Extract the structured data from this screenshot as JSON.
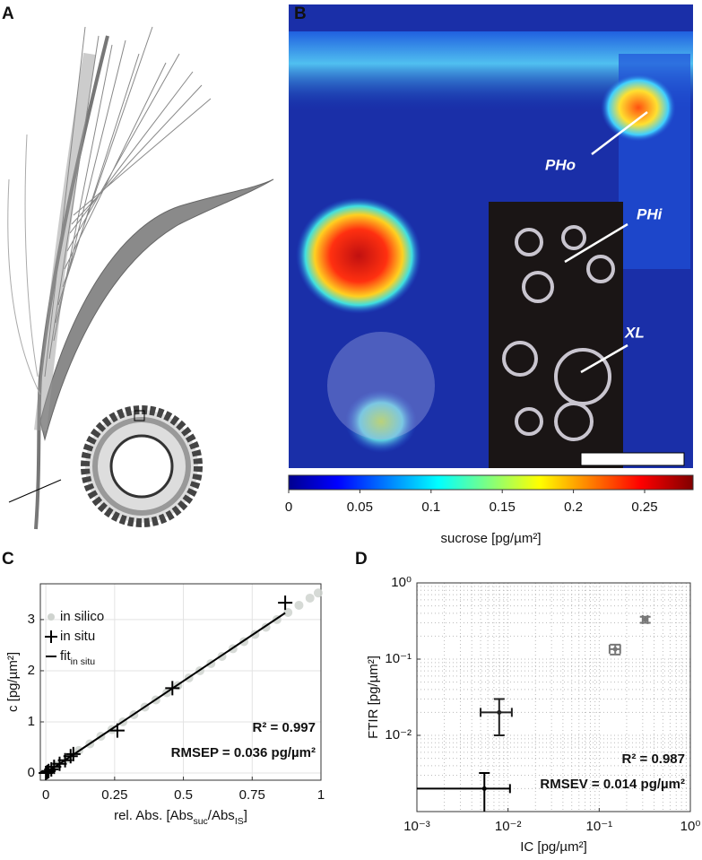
{
  "panel_labels": [
    "A",
    "B",
    "C",
    "D"
  ],
  "image_b": {
    "annotations": [
      "PHo",
      "PHi",
      "XL"
    ]
  },
  "chart_data": [
    {
      "type": "colorbar",
      "xlim": [
        0,
        0.284
      ],
      "xticks": [
        0,
        0.05,
        0.1,
        0.15,
        0.2,
        0.25
      ],
      "xlabel": "sucrose [pg/µm²]"
    },
    {
      "type": "scatter",
      "xlabel": [
        {
          "text": "rel. Abs. [Abs"
        },
        {
          "sub": "suc"
        },
        {
          "text": "/Abs"
        },
        {
          "sub": "IS"
        },
        {
          "text": "]"
        }
      ],
      "ylabel": "c [pg/µm²]",
      "xlim": [
        -0.02,
        1
      ],
      "ylim": [
        -0.14,
        3.7
      ],
      "xticks": [
        0,
        0.25,
        0.5,
        0.75,
        1
      ],
      "yticks": [
        0,
        1,
        2,
        3
      ],
      "grid": true,
      "series": [
        {
          "name": "in silico",
          "color": "#cfd3cf",
          "marker": "dot",
          "x": [
            0.01,
            0.04,
            0.08,
            0.12,
            0.16,
            0.2,
            0.24,
            0.28,
            0.32,
            0.36,
            0.4,
            0.44,
            0.48,
            0.52,
            0.56,
            0.6,
            0.64,
            0.68,
            0.72,
            0.76,
            0.8,
            0.84,
            0.88,
            0.92,
            0.96,
            0.99
          ],
          "values": [
            0.04,
            0.15,
            0.28,
            0.44,
            0.57,
            0.72,
            0.85,
            1.0,
            1.14,
            1.29,
            1.43,
            1.57,
            1.71,
            1.86,
            2.0,
            2.14,
            2.28,
            2.43,
            2.57,
            2.71,
            2.85,
            3.0,
            3.14,
            3.28,
            3.42,
            3.52
          ]
        },
        {
          "name": "in situ",
          "color": "#000000",
          "marker": "plus",
          "x": [
            0.87,
            0.46,
            0.26,
            0.1,
            0.09,
            0.07,
            0.05,
            0.03,
            0.02,
            0.01,
            0.005,
            0
          ],
          "values": [
            3.33,
            1.66,
            0.83,
            0.37,
            0.33,
            0.25,
            0.18,
            0.12,
            0.07,
            0.04,
            0.02,
            0
          ]
        },
        {
          "name": [
            {
              "text": "fit"
            },
            {
              "sub": "in situ"
            }
          ],
          "color": "#000000",
          "marker": "line",
          "x": [
            0,
            0.87
          ],
          "values": [
            0,
            3.13
          ]
        }
      ],
      "annotations": [
        "R² = 0.997",
        "RMSEP = 0.036 pg/µm²"
      ]
    },
    {
      "type": "errorbar",
      "xlabel": "IC [pg/µm²]",
      "ylabel": "FTIR [pg/µm²]",
      "log_x": true,
      "log_y": true,
      "xlim": [
        0.001,
        1
      ],
      "ylim": [
        0.001,
        1
      ],
      "xticks": [
        {
          "value": 0.001,
          "label": "10⁻³"
        },
        {
          "value": 0.01,
          "label": "10⁻²"
        },
        {
          "value": 0.1,
          "label": "10⁻¹"
        },
        {
          "value": 1,
          "label": "10⁰"
        }
      ],
      "yticks": [
        {
          "value": 0.01,
          "label": "10⁻²"
        },
        {
          "value": 0.1,
          "label": "10⁻¹"
        },
        {
          "value": 1,
          "label": "10⁰"
        }
      ],
      "grid": true,
      "minor_grid": true,
      "series": [
        {
          "x": [
            0.0055,
            0.008,
            0.15,
            0.32
          ],
          "values": [
            0.002,
            0.02,
            0.135,
            0.33
          ],
          "xerr": [
            0.005,
            0.003,
            0.02,
            0.02
          ],
          "yerr": [
            0.0012,
            0.01,
            0.02,
            0.03
          ],
          "colors": [
            "#000000",
            "#222222",
            "#777777",
            "#777777"
          ]
        }
      ],
      "annotations": [
        "R² = 0.987",
        "RMSEV = 0.014 pg/µm²"
      ]
    }
  ]
}
